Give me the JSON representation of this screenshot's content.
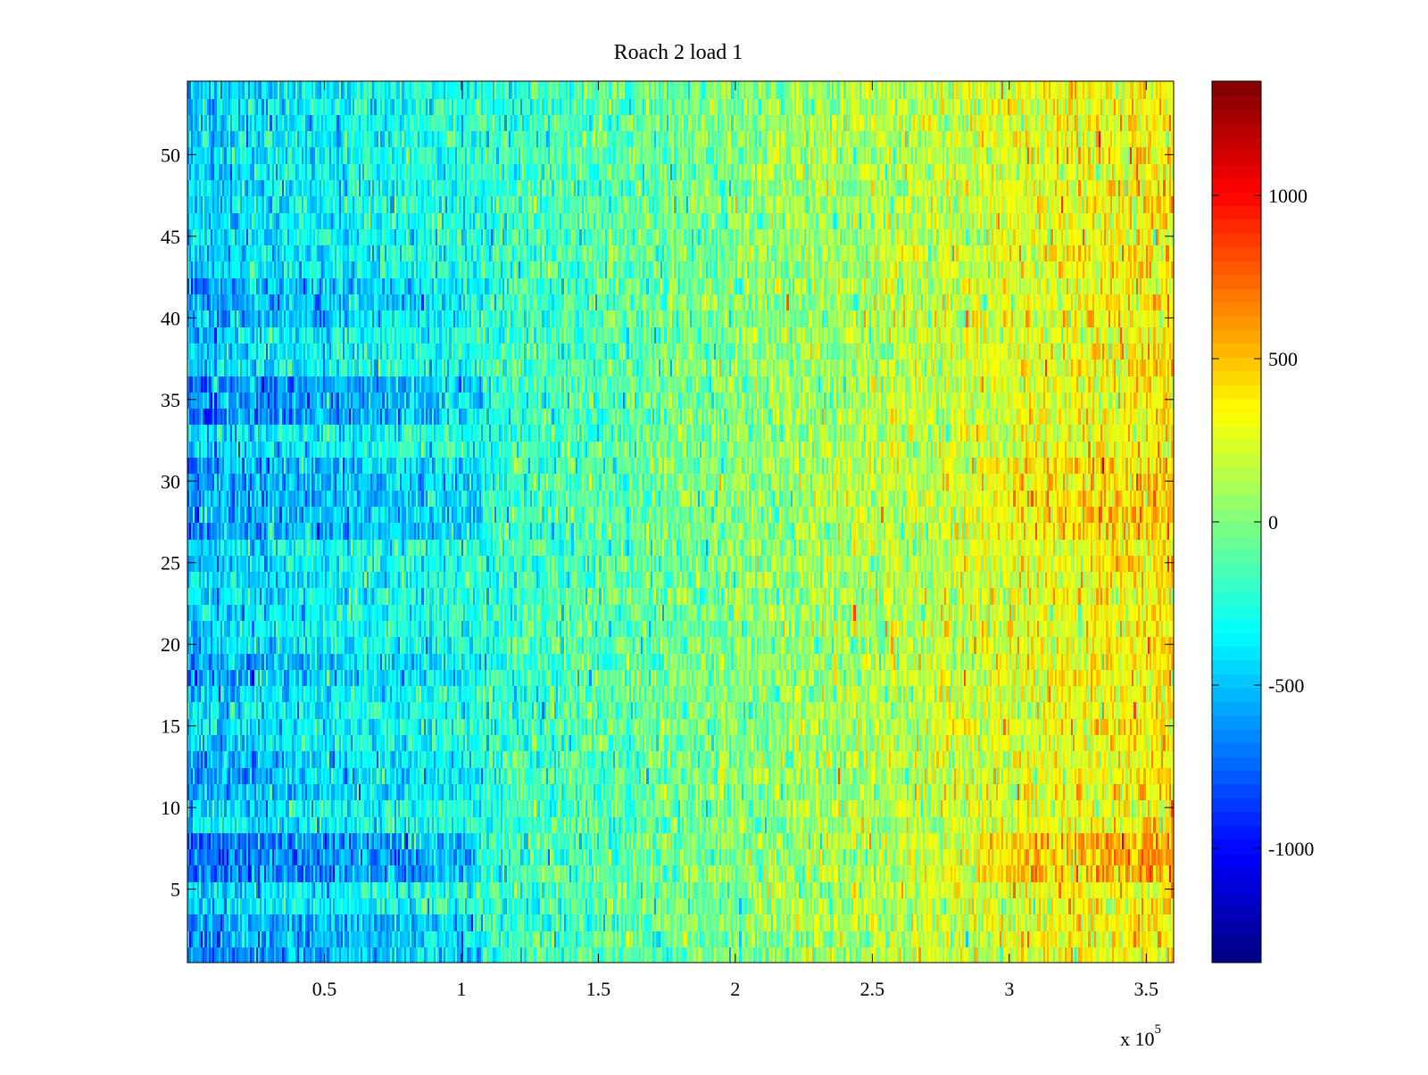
{
  "chart_data": {
    "type": "heatmap",
    "title": "Roach 2 load 1",
    "xlabel": "",
    "ylabel": "",
    "x_multiplier_label": {
      "base": "x 10",
      "exponent": "5"
    },
    "xlim": [
      0,
      360000
    ],
    "ylim": [
      0.5,
      54.5
    ],
    "clim": [
      -1350,
      1350
    ],
    "colormap": "jet",
    "n_rows": 54,
    "n_cols": 500,
    "x_ticks": [
      {
        "value": 0.5,
        "label": "0.5"
      },
      {
        "value": 1,
        "label": "1"
      },
      {
        "value": 1.5,
        "label": "1.5"
      },
      {
        "value": 2,
        "label": "2"
      },
      {
        "value": 2.5,
        "label": "2.5"
      },
      {
        "value": 3,
        "label": "3"
      },
      {
        "value": 3.5,
        "label": "3.5"
      }
    ],
    "y_ticks": [
      {
        "value": 5,
        "label": "5"
      },
      {
        "value": 10,
        "label": "10"
      },
      {
        "value": 15,
        "label": "15"
      },
      {
        "value": 20,
        "label": "20"
      },
      {
        "value": 25,
        "label": "25"
      },
      {
        "value": 30,
        "label": "30"
      },
      {
        "value": 35,
        "label": "35"
      },
      {
        "value": 40,
        "label": "40"
      },
      {
        "value": 45,
        "label": "45"
      },
      {
        "value": 50,
        "label": "50"
      }
    ],
    "colorbar_ticks": [
      {
        "value": 1000,
        "label": "1000"
      },
      {
        "value": 500,
        "label": "500"
      },
      {
        "value": 0,
        "label": "0"
      },
      {
        "value": -500,
        "label": "-500"
      },
      {
        "value": -1000,
        "label": "-1000"
      }
    ],
    "trend": {
      "x_fraction": [
        0,
        0.1,
        0.3,
        0.55,
        0.75,
        0.9,
        1.0
      ],
      "mean_value": [
        -470,
        -380,
        -230,
        0,
        170,
        300,
        370
      ]
    },
    "noise_std": 170,
    "row_offsets": [
      {
        "rows": [
          1,
          3
        ],
        "x_fraction_max": 0.3,
        "offset": -230
      },
      {
        "rows": [
          6,
          8
        ],
        "x_fraction_max": 0.3,
        "offset": -330
      },
      {
        "rows": [
          6,
          8
        ],
        "x_fraction_min": 0.8,
        "offset": 250
      },
      {
        "rows": [
          11,
          13
        ],
        "x_fraction_max": 0.3,
        "offset": -140
      },
      {
        "rows": [
          18,
          19
        ],
        "x_fraction_max": 0.3,
        "offset": -170
      },
      {
        "rows": [
          27,
          31
        ],
        "x_fraction_max": 0.3,
        "offset": -200
      },
      {
        "rows": [
          27,
          31
        ],
        "x_fraction_min": 0.8,
        "offset": 140
      },
      {
        "rows": [
          34,
          36
        ],
        "x_fraction_max": 0.3,
        "offset": -270
      },
      {
        "rows": [
          40,
          42
        ],
        "x_fraction_max": 0.3,
        "offset": -170
      }
    ]
  }
}
